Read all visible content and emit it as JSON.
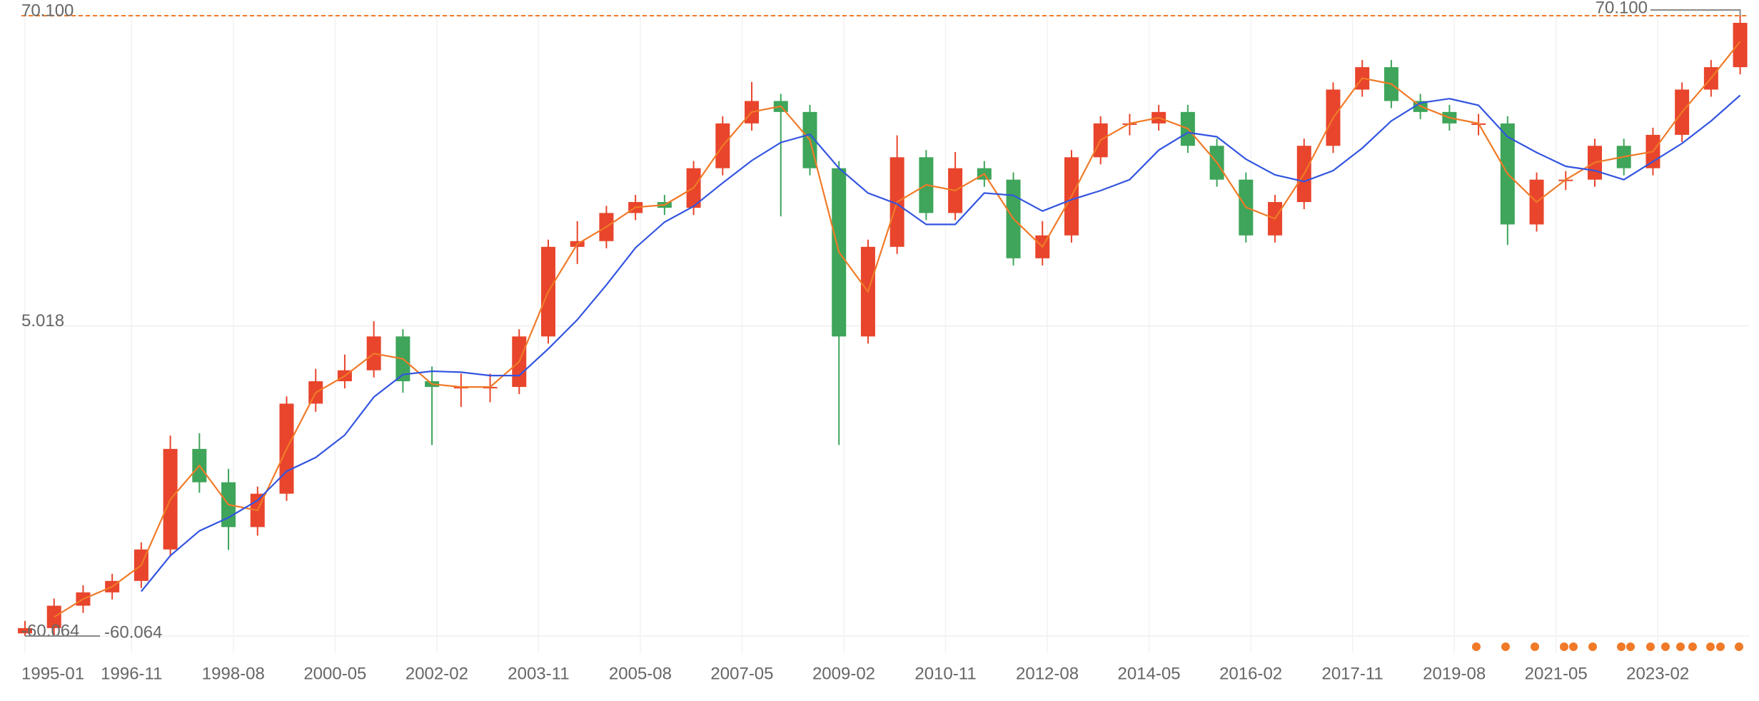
{
  "chart_data": {
    "type": "candlestick",
    "x": [
      "1995-01",
      "1995-07",
      "1996-01",
      "1996-07",
      "1997-01",
      "1997-07",
      "1998-01",
      "1998-07",
      "1999-01",
      "1999-07",
      "2000-01",
      "2000-07",
      "2001-01",
      "2001-07",
      "2002-01",
      "2002-07",
      "2003-01",
      "2003-07",
      "2004-01",
      "2004-07",
      "2005-01",
      "2005-07",
      "2006-01",
      "2006-07",
      "2007-01",
      "2007-07",
      "2008-01",
      "2008-07",
      "2009-01",
      "2009-07",
      "2010-01",
      "2010-07",
      "2011-01",
      "2011-07",
      "2012-01",
      "2012-07",
      "2013-01",
      "2013-07",
      "2014-01",
      "2014-07",
      "2015-01",
      "2015-07",
      "2016-01",
      "2016-07",
      "2017-01",
      "2017-07",
      "2018-01",
      "2018-07",
      "2019-01",
      "2019-07",
      "2020-01",
      "2020-07",
      "2021-01",
      "2021-07",
      "2022-01",
      "2022-07",
      "2023-01",
      "2023-07",
      "2024-01",
      "2024-07"
    ],
    "open": [
      -59.5,
      -58.4,
      -53.7,
      -50.9,
      -48.5,
      -41.9,
      -20.8,
      -27.8,
      -37.2,
      -30.2,
      -11.3,
      -6.6,
      -4.3,
      2.8,
      -6.6,
      -7.8,
      -7.8,
      -7.8,
      2.8,
      21.6,
      22.8,
      28.7,
      31.0,
      29.8,
      38.1,
      47.5,
      52.2,
      49.9,
      38.1,
      2.8,
      21.6,
      40.4,
      28.7,
      38.1,
      35.7,
      19.2,
      24.0,
      40.4,
      47.5,
      47.5,
      49.9,
      42.8,
      35.7,
      24.0,
      31.0,
      42.8,
      54.6,
      59.3,
      52.2,
      49.9,
      47.5,
      47.5,
      26.3,
      35.7,
      35.7,
      42.8,
      38.1,
      45.1,
      54.6,
      59.3
    ],
    "high": [
      -56.9,
      -52.2,
      -49.4,
      -47.0,
      -40.4,
      -18.0,
      -17.5,
      -25.0,
      -28.7,
      -9.8,
      -4.0,
      -1.0,
      6.0,
      4.3,
      -3.5,
      -5.0,
      -5.0,
      4.3,
      23.1,
      27.0,
      30.2,
      32.5,
      32.5,
      39.6,
      49.0,
      56.2,
      53.7,
      51.4,
      39.6,
      23.1,
      45.0,
      41.9,
      41.5,
      39.6,
      37.2,
      27.0,
      41.9,
      49.0,
      49.5,
      51.4,
      51.4,
      44.3,
      37.2,
      32.5,
      44.3,
      56.1,
      60.8,
      60.8,
      53.7,
      51.4,
      49.5,
      49.0,
      37.2,
      37.5,
      44.3,
      44.3,
      46.6,
      56.1,
      60.8,
      70.1
    ],
    "low": [
      -60.064,
      -59.9,
      -55.2,
      -52.4,
      -50.0,
      -43.4,
      -30.0,
      -42.0,
      -39.0,
      -31.7,
      -13.0,
      -8.1,
      -5.8,
      -9.0,
      -20.0,
      -12.0,
      -11.0,
      -9.3,
      1.3,
      18.0,
      21.3,
      27.2,
      28.3,
      28.3,
      36.6,
      46.0,
      28.0,
      36.6,
      -20.0,
      1.3,
      20.1,
      27.2,
      27.2,
      34.2,
      17.7,
      17.7,
      22.5,
      38.9,
      45.0,
      46.0,
      41.3,
      34.2,
      22.5,
      22.5,
      29.5,
      41.3,
      53.1,
      50.7,
      48.4,
      46.0,
      45.0,
      22.0,
      24.8,
      33.5,
      34.2,
      36.6,
      36.6,
      43.6,
      53.1,
      57.8
    ],
    "close": [
      -58.4,
      -53.7,
      -50.9,
      -48.5,
      -41.9,
      -20.8,
      -27.8,
      -37.2,
      -30.2,
      -11.3,
      -6.6,
      -4.3,
      2.8,
      -6.6,
      -7.8,
      -7.8,
      -7.8,
      2.8,
      21.6,
      22.8,
      28.7,
      31.0,
      29.8,
      38.1,
      47.5,
      52.2,
      49.9,
      38.1,
      2.8,
      21.6,
      40.4,
      28.7,
      38.1,
      35.7,
      19.2,
      24.0,
      40.4,
      47.5,
      47.5,
      49.9,
      42.8,
      35.7,
      24.0,
      31.0,
      42.8,
      54.6,
      59.3,
      52.2,
      49.9,
      47.5,
      47.5,
      26.3,
      35.7,
      35.7,
      42.8,
      38.1,
      45.1,
      54.6,
      59.3,
      68.6
    ],
    "up_color": "#e8452c",
    "down_color": "#3ea55a",
    "lines": [
      {
        "color": "#f07a28",
        "values": [
          null,
          -56.1,
          -52.3,
          -49.7,
          -45.2,
          -31.4,
          -24.3,
          -32.5,
          -33.7,
          -20.8,
          -9.0,
          -5.5,
          -0.8,
          -1.9,
          -7.2,
          -7.8,
          -7.8,
          -2.5,
          12.2,
          22.2,
          25.8,
          29.9,
          30.4,
          34.0,
          42.8,
          49.9,
          51.1,
          44.0,
          20.5,
          12.2,
          31.0,
          34.6,
          33.4,
          36.9,
          27.5,
          21.6,
          32.2,
          44.0,
          47.5,
          48.7,
          46.4,
          39.3,
          29.9,
          27.5,
          36.9,
          48.7,
          57.0,
          55.8,
          51.1,
          48.7,
          47.5,
          36.9,
          31.0,
          35.7,
          39.3,
          40.5,
          41.6,
          49.9,
          57.0,
          64.7
        ]
      },
      {
        "color": "#3355e0",
        "values": [
          null,
          null,
          null,
          null,
          -50.7,
          -43.2,
          -38.0,
          -35.2,
          -31.6,
          -25.5,
          -22.6,
          -17.9,
          -9.9,
          -5.2,
          -4.5,
          -4.7,
          -5.4,
          -5.4,
          0.2,
          6.3,
          13.6,
          21.4,
          26.8,
          30.1,
          35.0,
          39.7,
          43.5,
          45.2,
          38.1,
          32.9,
          30.6,
          26.3,
          26.3,
          32.9,
          32.4,
          29.1,
          31.5,
          33.4,
          35.7,
          41.9,
          45.6,
          44.7,
          40.0,
          36.7,
          35.3,
          37.6,
          42.3,
          48.0,
          51.8,
          52.7,
          51.3,
          44.7,
          41.4,
          38.5,
          37.6,
          35.7,
          39.5,
          43.3,
          48.0,
          53.4
        ]
      }
    ],
    "xticks": [
      "1995-01",
      "1996-11",
      "1998-08",
      "2000-05",
      "2002-02",
      "2003-11",
      "2005-08",
      "2007-05",
      "2009-02",
      "2010-11",
      "2012-08",
      "2014-05",
      "2016-02",
      "2017-11",
      "2019-08",
      "2021-05",
      "2023-02"
    ],
    "ylim": [
      -60.064,
      70.1
    ],
    "yticks": [
      {
        "value": -60.064,
        "label": "-60.064"
      },
      {
        "value": 5.018,
        "label": "5.018"
      },
      {
        "value": 70.1,
        "label": "70.100"
      }
    ],
    "max_marker": {
      "value": 70.1,
      "label": "70.100"
    },
    "min_marker": {
      "value": -60.064,
      "label": "-60.064"
    },
    "grid": true
  }
}
